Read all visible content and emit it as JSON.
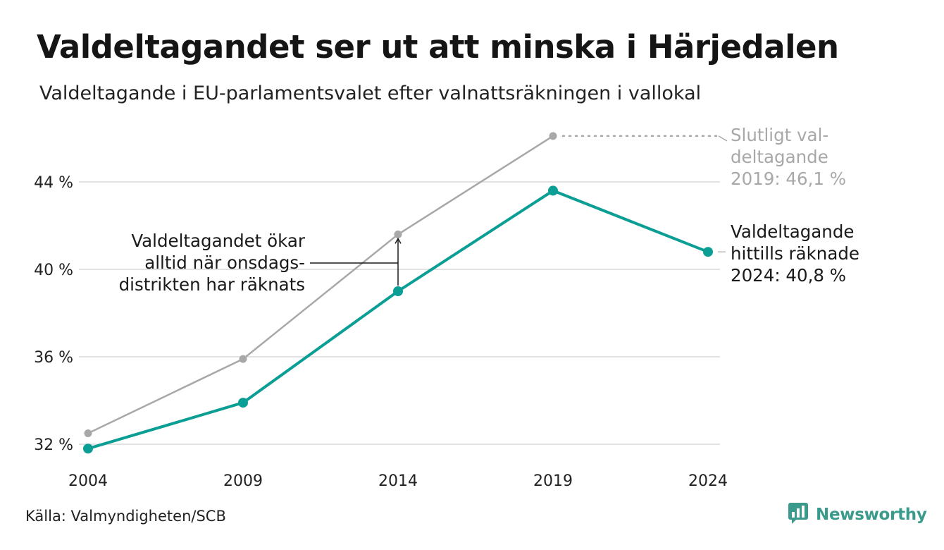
{
  "title": "Valdeltagandet ser ut att minska i Härjedalen",
  "subtitle": "Valdeltagande i EU-parlamentsvalet efter valnattsräkningen i vallokal",
  "source": "Källa: Valmyndigheten/SCB",
  "brand": {
    "name": "Newsworthy",
    "icon": "newsworthy-logo-icon"
  },
  "colors": {
    "primary": "#0b9e94",
    "secondary": "#a8a8a8",
    "grid": "#e2e2e2",
    "text": "#1a1a1a"
  },
  "chart_data": {
    "type": "line",
    "x": [
      "2004",
      "2009",
      "2014",
      "2019",
      "2024"
    ],
    "y_ticks": [
      "32 %",
      "36 %",
      "40 %",
      "44 %"
    ],
    "y_tick_values": [
      32,
      36,
      40,
      44
    ],
    "ylim": [
      31.5,
      46.5
    ],
    "grid": true,
    "series": [
      {
        "key": "final",
        "color": "#a8a8a8",
        "values": [
          32.5,
          35.9,
          41.6,
          46.1,
          null
        ]
      },
      {
        "key": "election_night",
        "color": "#0b9e94",
        "values": [
          31.8,
          33.9,
          39.0,
          43.6,
          40.8
        ]
      }
    ],
    "annotations": {
      "final_2019": [
        "Slutligt val-",
        "deltagande",
        "2019: 46,1 %"
      ],
      "counted_2024": [
        "Valdeltagande",
        "hittills räknade",
        "2024: 40,8 %"
      ],
      "wednesday": [
        "Valdeltagandet ökar",
        "alltid när onsdags-",
        "distrikten har räknats"
      ]
    }
  }
}
